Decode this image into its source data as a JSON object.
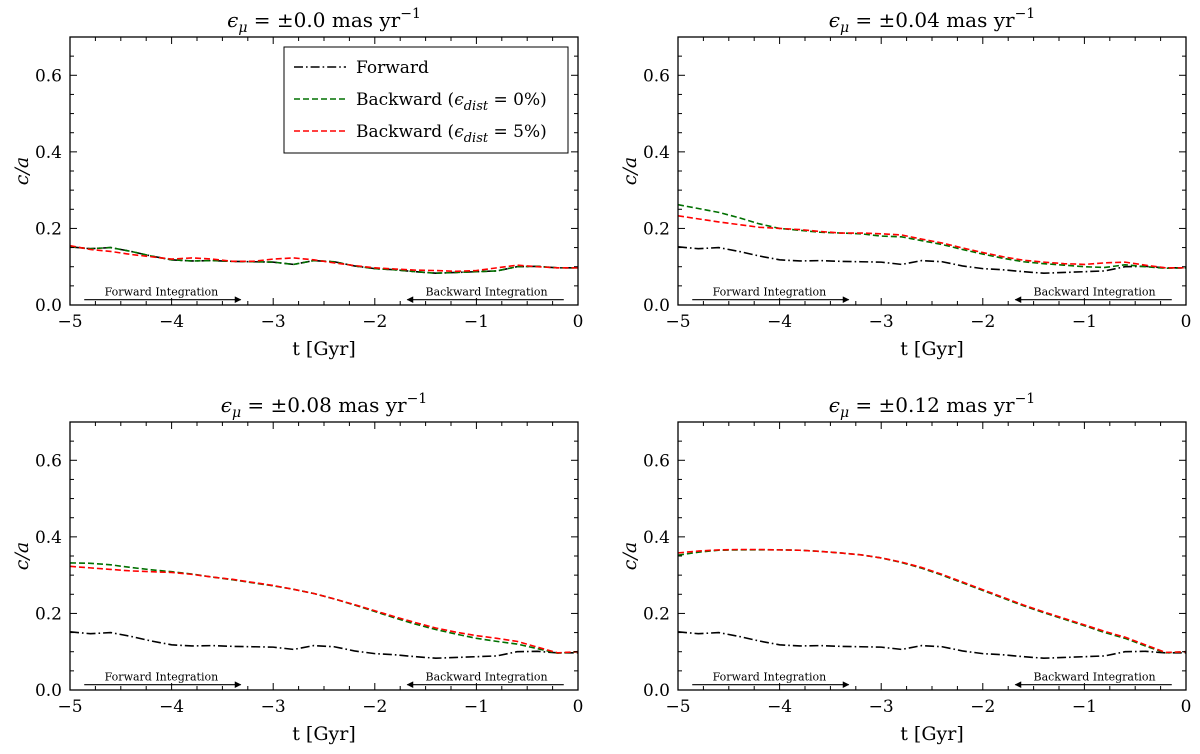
{
  "chart_data": [
    {
      "type": "line",
      "title": "ϵ_μ = ±0.0 mas yr⁻¹",
      "title_parts": {
        "symbol": "ϵ",
        "sub": "μ",
        "rest": " = ±0.0 mas yr",
        "sup": "−1"
      },
      "xlabel": "t [Gyr]",
      "ylabel": "c/a",
      "xlim": [
        -5,
        0
      ],
      "ylim": [
        0,
        0.7
      ],
      "xticks": [
        -5,
        -4,
        -3,
        -2,
        -1,
        0
      ],
      "xtick_labels": [
        "−5",
        "−4",
        "−3",
        "−2",
        "−1",
        "0"
      ],
      "yticks": [
        0.0,
        0.2,
        0.4,
        0.6
      ],
      "ytick_labels": [
        "0.0",
        "0.2",
        "0.4",
        "0.6"
      ],
      "legend": true,
      "legend_position": "top-right",
      "annotations": {
        "forward": "Forward Integration",
        "backward": "Backward Integration"
      },
      "series": [
        {
          "name": "Forward",
          "style": "dashdot",
          "color": "#000000",
          "x": [
            -5,
            -4.8,
            -4.6,
            -4.4,
            -4.2,
            -4.0,
            -3.8,
            -3.6,
            -3.4,
            -3.2,
            -3.0,
            -2.8,
            -2.6,
            -2.4,
            -2.2,
            -2.0,
            -1.8,
            -1.6,
            -1.4,
            -1.2,
            -1.0,
            -0.8,
            -0.6,
            -0.4,
            -0.2,
            0
          ],
          "y": [
            0.152,
            0.147,
            0.15,
            0.14,
            0.128,
            0.118,
            0.115,
            0.116,
            0.114,
            0.113,
            0.112,
            0.106,
            0.116,
            0.113,
            0.102,
            0.095,
            0.092,
            0.087,
            0.083,
            0.085,
            0.087,
            0.089,
            0.1,
            0.101,
            0.097,
            0.097
          ]
        },
        {
          "name": "Backward (ϵ_dist = 0%)",
          "style": "dashed",
          "color": "#007000",
          "x": [
            -5,
            -4.8,
            -4.6,
            -4.4,
            -4.2,
            -4.0,
            -3.8,
            -3.6,
            -3.4,
            -3.2,
            -3.0,
            -2.8,
            -2.6,
            -2.4,
            -2.2,
            -2.0,
            -1.8,
            -1.6,
            -1.4,
            -1.2,
            -1.0,
            -0.8,
            -0.6,
            -0.4,
            -0.2,
            0
          ],
          "y": [
            0.152,
            0.147,
            0.15,
            0.14,
            0.128,
            0.118,
            0.115,
            0.116,
            0.114,
            0.113,
            0.112,
            0.106,
            0.116,
            0.113,
            0.102,
            0.095,
            0.092,
            0.087,
            0.083,
            0.085,
            0.087,
            0.089,
            0.1,
            0.101,
            0.097,
            0.097
          ]
        },
        {
          "name": "Backward (ϵ_dist = 5%)",
          "style": "dashed",
          "color": "#ff0000",
          "x": [
            -5,
            -4.8,
            -4.6,
            -4.4,
            -4.2,
            -4.0,
            -3.8,
            -3.6,
            -3.4,
            -3.2,
            -3.0,
            -2.8,
            -2.6,
            -2.4,
            -2.2,
            -2.0,
            -1.8,
            -1.6,
            -1.4,
            -1.2,
            -1.0,
            -0.8,
            -0.6,
            -0.4,
            -0.2,
            0
          ],
          "y": [
            0.155,
            0.145,
            0.14,
            0.132,
            0.126,
            0.12,
            0.123,
            0.12,
            0.114,
            0.114,
            0.12,
            0.123,
            0.118,
            0.11,
            0.103,
            0.097,
            0.094,
            0.091,
            0.09,
            0.088,
            0.09,
            0.097,
            0.104,
            0.1,
            0.097,
            0.097
          ]
        }
      ]
    },
    {
      "type": "line",
      "title": "ϵ_μ = ±0.04 mas yr⁻¹",
      "title_parts": {
        "symbol": "ϵ",
        "sub": "μ",
        "rest": " = ±0.04 mas yr",
        "sup": "−1"
      },
      "xlabel": "t [Gyr]",
      "ylabel": "c/a",
      "xlim": [
        -5,
        0
      ],
      "ylim": [
        0,
        0.7
      ],
      "xticks": [
        -5,
        -4,
        -3,
        -2,
        -1,
        0
      ],
      "xtick_labels": [
        "−5",
        "−4",
        "−3",
        "−2",
        "−1",
        "0"
      ],
      "yticks": [
        0.0,
        0.2,
        0.4,
        0.6
      ],
      "ytick_labels": [
        "0.0",
        "0.2",
        "0.4",
        "0.6"
      ],
      "legend": false,
      "annotations": {
        "forward": "Forward Integration",
        "backward": "Backward Integration"
      },
      "series": [
        {
          "name": "Forward",
          "style": "dashdot",
          "color": "#000000",
          "x": [
            -5,
            -4.8,
            -4.6,
            -4.4,
            -4.2,
            -4.0,
            -3.8,
            -3.6,
            -3.4,
            -3.2,
            -3.0,
            -2.8,
            -2.6,
            -2.4,
            -2.2,
            -2.0,
            -1.8,
            -1.6,
            -1.4,
            -1.2,
            -1.0,
            -0.8,
            -0.6,
            -0.4,
            -0.2,
            0
          ],
          "y": [
            0.152,
            0.147,
            0.15,
            0.14,
            0.128,
            0.118,
            0.115,
            0.116,
            0.114,
            0.113,
            0.112,
            0.106,
            0.116,
            0.113,
            0.102,
            0.095,
            0.092,
            0.087,
            0.083,
            0.085,
            0.087,
            0.089,
            0.1,
            0.101,
            0.097,
            0.097
          ]
        },
        {
          "name": "Backward (ϵ_dist = 0%)",
          "style": "dashed",
          "color": "#007000",
          "x": [
            -5,
            -4.8,
            -4.6,
            -4.4,
            -4.2,
            -4.0,
            -3.8,
            -3.6,
            -3.4,
            -3.2,
            -3.0,
            -2.8,
            -2.6,
            -2.4,
            -2.2,
            -2.0,
            -1.8,
            -1.6,
            -1.4,
            -1.2,
            -1.0,
            -0.8,
            -0.6,
            -0.4,
            -0.2,
            0
          ],
          "y": [
            0.262,
            0.252,
            0.242,
            0.228,
            0.212,
            0.2,
            0.195,
            0.19,
            0.188,
            0.186,
            0.18,
            0.178,
            0.168,
            0.158,
            0.145,
            0.133,
            0.122,
            0.113,
            0.108,
            0.104,
            0.1,
            0.098,
            0.105,
            0.1,
            0.096,
            0.097
          ]
        },
        {
          "name": "Backward (ϵ_dist = 5%)",
          "style": "dashed",
          "color": "#ff0000",
          "x": [
            -5,
            -4.8,
            -4.6,
            -4.4,
            -4.2,
            -4.0,
            -3.8,
            -3.6,
            -3.4,
            -3.2,
            -3.0,
            -2.8,
            -2.6,
            -2.4,
            -2.2,
            -2.0,
            -1.8,
            -1.6,
            -1.4,
            -1.2,
            -1.0,
            -0.8,
            -0.6,
            -0.4,
            -0.2,
            0
          ],
          "y": [
            0.233,
            0.225,
            0.217,
            0.21,
            0.203,
            0.2,
            0.197,
            0.192,
            0.188,
            0.188,
            0.186,
            0.183,
            0.172,
            0.162,
            0.149,
            0.137,
            0.126,
            0.117,
            0.112,
            0.108,
            0.106,
            0.11,
            0.112,
            0.104,
            0.097,
            0.097
          ]
        }
      ]
    },
    {
      "type": "line",
      "title": "ϵ_μ = ±0.08 mas yr⁻¹",
      "title_parts": {
        "symbol": "ϵ",
        "sub": "μ",
        "rest": " = ±0.08 mas yr",
        "sup": "−1"
      },
      "xlabel": "t [Gyr]",
      "ylabel": "c/a",
      "xlim": [
        -5,
        0
      ],
      "ylim": [
        0,
        0.7
      ],
      "xticks": [
        -5,
        -4,
        -3,
        -2,
        -1,
        0
      ],
      "xtick_labels": [
        "−5",
        "−4",
        "−3",
        "−2",
        "−1",
        "0"
      ],
      "yticks": [
        0.0,
        0.2,
        0.4,
        0.6
      ],
      "ytick_labels": [
        "0.0",
        "0.2",
        "0.4",
        "0.6"
      ],
      "legend": false,
      "annotations": {
        "forward": "Forward Integration",
        "backward": "Backward Integration"
      },
      "series": [
        {
          "name": "Forward",
          "style": "dashdot",
          "color": "#000000",
          "x": [
            -5,
            -4.8,
            -4.6,
            -4.4,
            -4.2,
            -4.0,
            -3.8,
            -3.6,
            -3.4,
            -3.2,
            -3.0,
            -2.8,
            -2.6,
            -2.4,
            -2.2,
            -2.0,
            -1.8,
            -1.6,
            -1.4,
            -1.2,
            -1.0,
            -0.8,
            -0.6,
            -0.4,
            -0.2,
            0
          ],
          "y": [
            0.152,
            0.147,
            0.15,
            0.14,
            0.128,
            0.118,
            0.115,
            0.116,
            0.114,
            0.113,
            0.112,
            0.106,
            0.116,
            0.113,
            0.102,
            0.095,
            0.092,
            0.087,
            0.083,
            0.085,
            0.087,
            0.089,
            0.1,
            0.101,
            0.097,
            0.097
          ]
        },
        {
          "name": "Backward (ϵ_dist = 0%)",
          "style": "dashed",
          "color": "#007000",
          "x": [
            -5,
            -4.8,
            -4.6,
            -4.4,
            -4.2,
            -4.0,
            -3.8,
            -3.6,
            -3.4,
            -3.2,
            -3.0,
            -2.8,
            -2.6,
            -2.4,
            -2.2,
            -2.0,
            -1.8,
            -1.6,
            -1.4,
            -1.2,
            -1.0,
            -0.8,
            -0.6,
            -0.4,
            -0.2,
            0
          ],
          "y": [
            0.332,
            0.331,
            0.327,
            0.32,
            0.314,
            0.309,
            0.303,
            0.295,
            0.288,
            0.28,
            0.272,
            0.263,
            0.252,
            0.238,
            0.222,
            0.205,
            0.188,
            0.172,
            0.158,
            0.146,
            0.135,
            0.127,
            0.12,
            0.108,
            0.096,
            0.1
          ]
        },
        {
          "name": "Backward (ϵ_dist = 5%)",
          "style": "dashed",
          "color": "#ff0000",
          "x": [
            -5,
            -4.8,
            -4.6,
            -4.4,
            -4.2,
            -4.0,
            -3.8,
            -3.6,
            -3.4,
            -3.2,
            -3.0,
            -2.8,
            -2.6,
            -2.4,
            -2.2,
            -2.0,
            -1.8,
            -1.6,
            -1.4,
            -1.2,
            -1.0,
            -0.8,
            -0.6,
            -0.4,
            -0.2,
            0
          ],
          "y": [
            0.323,
            0.319,
            0.315,
            0.311,
            0.309,
            0.307,
            0.302,
            0.295,
            0.289,
            0.281,
            0.273,
            0.263,
            0.252,
            0.238,
            0.223,
            0.207,
            0.191,
            0.176,
            0.162,
            0.151,
            0.142,
            0.135,
            0.127,
            0.112,
            0.097,
            0.1
          ]
        }
      ]
    },
    {
      "type": "line",
      "title": "ϵ_μ = ±0.12 mas yr⁻¹",
      "title_parts": {
        "symbol": "ϵ",
        "sub": "μ",
        "rest": " = ±0.12 mas yr",
        "sup": "−1"
      },
      "xlabel": "t [Gyr]",
      "ylabel": "c/a",
      "xlim": [
        -5,
        0
      ],
      "ylim": [
        0,
        0.7
      ],
      "xticks": [
        -5,
        -4,
        -3,
        -2,
        -1,
        0
      ],
      "xtick_labels": [
        "−5",
        "−4",
        "−3",
        "−2",
        "−1",
        "0"
      ],
      "yticks": [
        0.0,
        0.2,
        0.4,
        0.6
      ],
      "ytick_labels": [
        "0.0",
        "0.2",
        "0.4",
        "0.6"
      ],
      "legend": false,
      "annotations": {
        "forward": "Forward Integration",
        "backward": "Backward Integration"
      },
      "series": [
        {
          "name": "Forward",
          "style": "dashdot",
          "color": "#000000",
          "x": [
            -5,
            -4.8,
            -4.6,
            -4.4,
            -4.2,
            -4.0,
            -3.8,
            -3.6,
            -3.4,
            -3.2,
            -3.0,
            -2.8,
            -2.6,
            -2.4,
            -2.2,
            -2.0,
            -1.8,
            -1.6,
            -1.4,
            -1.2,
            -1.0,
            -0.8,
            -0.6,
            -0.4,
            -0.2,
            0
          ],
          "y": [
            0.152,
            0.147,
            0.15,
            0.14,
            0.128,
            0.118,
            0.115,
            0.116,
            0.114,
            0.113,
            0.112,
            0.106,
            0.116,
            0.113,
            0.102,
            0.095,
            0.092,
            0.087,
            0.083,
            0.085,
            0.087,
            0.089,
            0.1,
            0.101,
            0.097,
            0.097
          ]
        },
        {
          "name": "Backward (ϵ_dist = 0%)",
          "style": "dashed",
          "color": "#007000",
          "x": [
            -5,
            -4.8,
            -4.6,
            -4.4,
            -4.2,
            -4.0,
            -3.8,
            -3.6,
            -3.4,
            -3.2,
            -3.0,
            -2.8,
            -2.6,
            -2.4,
            -2.2,
            -2.0,
            -1.8,
            -1.6,
            -1.4,
            -1.2,
            -1.0,
            -0.8,
            -0.6,
            -0.4,
            -0.2,
            0
          ],
          "y": [
            0.352,
            0.36,
            0.365,
            0.366,
            0.366,
            0.366,
            0.365,
            0.362,
            0.358,
            0.353,
            0.345,
            0.333,
            0.318,
            0.3,
            0.28,
            0.26,
            0.24,
            0.22,
            0.202,
            0.185,
            0.168,
            0.15,
            0.135,
            0.115,
            0.097,
            0.1
          ]
        },
        {
          "name": "Backward (ϵ_dist = 5%)",
          "style": "dashed",
          "color": "#ff0000",
          "x": [
            -5,
            -4.8,
            -4.6,
            -4.4,
            -4.2,
            -4.0,
            -3.8,
            -3.6,
            -3.4,
            -3.2,
            -3.0,
            -2.8,
            -2.6,
            -2.4,
            -2.2,
            -2.0,
            -1.8,
            -1.6,
            -1.4,
            -1.2,
            -1.0,
            -0.8,
            -0.6,
            -0.4,
            -0.2,
            0
          ],
          "y": [
            0.358,
            0.363,
            0.366,
            0.367,
            0.367,
            0.366,
            0.365,
            0.362,
            0.358,
            0.353,
            0.345,
            0.334,
            0.32,
            0.302,
            0.282,
            0.262,
            0.242,
            0.222,
            0.204,
            0.187,
            0.17,
            0.153,
            0.138,
            0.118,
            0.098,
            0.1
          ]
        }
      ]
    }
  ]
}
